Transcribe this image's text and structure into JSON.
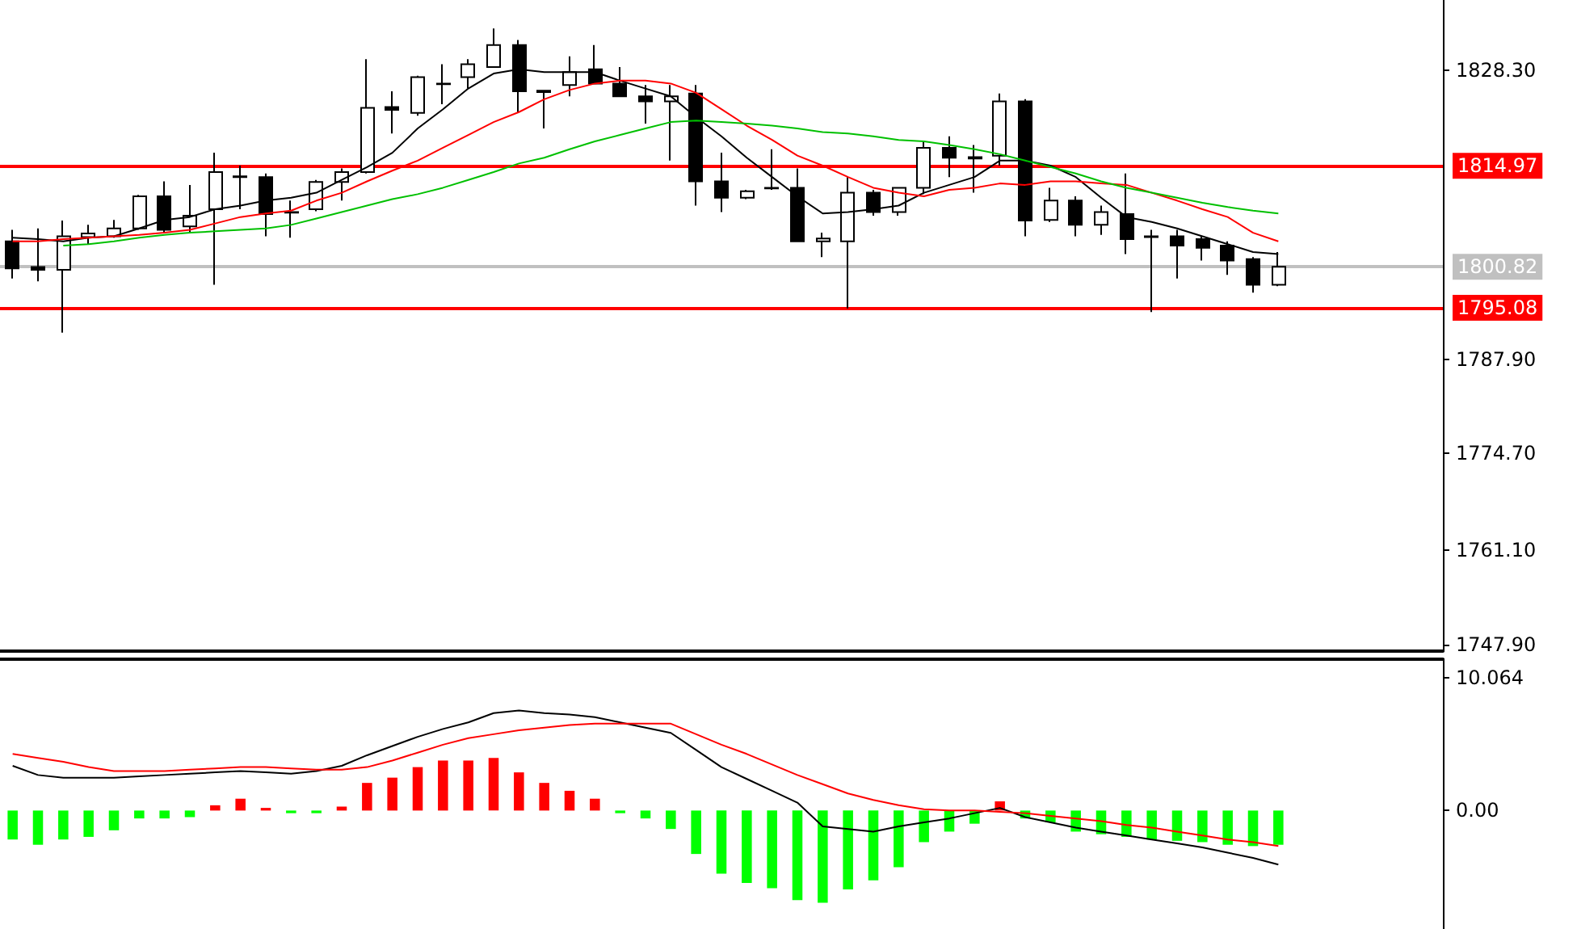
{
  "chart_data": [
    {
      "type": "candlestick",
      "categories": [
        null,
        null,
        null,
        null,
        null,
        null,
        null,
        null,
        null,
        null,
        null,
        null,
        null,
        null,
        null,
        null,
        null,
        null,
        null,
        null,
        null,
        null,
        null,
        null,
        null,
        null,
        null,
        null,
        null,
        null,
        null,
        null,
        null,
        null,
        null,
        null,
        null,
        null,
        null,
        null,
        null,
        null,
        null,
        null,
        null,
        null,
        null,
        null,
        null,
        null,
        null,
        null,
        null,
        null,
        null,
        null,
        null
      ],
      "color": "#000000",
      "ohlc": [
        [
          1804.4,
          1806.0,
          1799.2,
          1800.6
        ],
        [
          1800.8,
          1806.2,
          1798.8,
          1800.4
        ],
        [
          1800.4,
          1807.3,
          1791.6,
          1805.1
        ],
        [
          1805.0,
          1806.7,
          1804.0,
          1805.5
        ],
        [
          1805.1,
          1807.4,
          1804.9,
          1806.2
        ],
        [
          1806.2,
          1810.9,
          1806.0,
          1810.7
        ],
        [
          1810.7,
          1812.8,
          1805.6,
          1806.0
        ],
        [
          1806.5,
          1812.3,
          1805.6,
          1808.0
        ],
        [
          1808.9,
          1816.8,
          1798.3,
          1814.1
        ],
        [
          1813.5,
          1815.0,
          1808.9,
          1813.4
        ],
        [
          1813.4,
          1813.9,
          1805.1,
          1808.2
        ],
        [
          1808.4,
          1810.1,
          1804.9,
          1808.5
        ],
        [
          1808.9,
          1813.0,
          1808.6,
          1812.7
        ],
        [
          1812.7,
          1814.6,
          1810.1,
          1814.1
        ],
        [
          1814.1,
          1829.9,
          1813.9,
          1823.1
        ],
        [
          1823.2,
          1825.4,
          1819.5,
          1822.8
        ],
        [
          1822.4,
          1827.6,
          1822.0,
          1827.4
        ],
        [
          1826.4,
          1829.2,
          1823.6,
          1826.5
        ],
        [
          1827.4,
          1829.9,
          1825.8,
          1829.2
        ],
        [
          1828.8,
          1834.2,
          1828.7,
          1831.9
        ],
        [
          1831.9,
          1832.6,
          1822.4,
          1825.4
        ],
        [
          1825.5,
          1825.6,
          1820.2,
          1825.3
        ],
        [
          1826.3,
          1830.3,
          1824.7,
          1828.1
        ],
        [
          1828.5,
          1831.9,
          1826.5,
          1826.5
        ],
        [
          1826.5,
          1828.8,
          1824.7,
          1824.7
        ],
        [
          1824.7,
          1826.3,
          1820.9,
          1824.0
        ],
        [
          1824.0,
          1826.3,
          1815.7,
          1824.7
        ],
        [
          1825.1,
          1826.3,
          1809.4,
          1812.8
        ],
        [
          1812.8,
          1816.8,
          1808.5,
          1810.5
        ],
        [
          1810.5,
          1811.6,
          1810.3,
          1811.4
        ],
        [
          1811.8,
          1817.3,
          1811.6,
          1811.9
        ],
        [
          1811.9,
          1814.6,
          1804.4,
          1804.4
        ],
        [
          1804.4,
          1805.6,
          1802.2,
          1804.8
        ],
        [
          1804.4,
          1813.4,
          1795.0,
          1811.2
        ],
        [
          1811.2,
          1811.6,
          1808.0,
          1808.5
        ],
        [
          1808.5,
          1812.0,
          1808.0,
          1811.9
        ],
        [
          1811.9,
          1818.4,
          1811.0,
          1817.5
        ],
        [
          1817.5,
          1819.1,
          1813.4,
          1816.1
        ],
        [
          1816.2,
          1817.9,
          1811.2,
          1816.0
        ],
        [
          1816.4,
          1825.1,
          1815.0,
          1824.0
        ],
        [
          1824.0,
          1824.3,
          1805.1,
          1807.3
        ],
        [
          1807.4,
          1811.9,
          1807.1,
          1810.1
        ],
        [
          1810.1,
          1810.7,
          1805.1,
          1806.7
        ],
        [
          1806.7,
          1809.4,
          1805.3,
          1808.5
        ],
        [
          1808.2,
          1813.9,
          1802.6,
          1804.7
        ],
        [
          1805.1,
          1806.0,
          1794.5,
          1805.0
        ],
        [
          1805.1,
          1806.0,
          1799.2,
          1803.8
        ],
        [
          1804.7,
          1805.1,
          1801.7,
          1803.5
        ],
        [
          1803.8,
          1804.4,
          1799.7,
          1801.7
        ],
        [
          1801.9,
          1802.2,
          1797.2,
          1798.3
        ],
        [
          1798.3,
          1802.9,
          1798.1,
          1800.82
        ],
        null,
        null,
        null,
        null,
        null,
        null
      ],
      "series": [
        {
          "type": "line",
          "color": "#000000",
          "values": [
            1804.9,
            1804.7,
            1804.4,
            1804.9,
            1805.1,
            1806.2,
            1807.4,
            1807.8,
            1808.9,
            1809.4,
            1810.1,
            1810.5,
            1811.2,
            1813.0,
            1814.8,
            1816.8,
            1820.2,
            1822.9,
            1825.8,
            1827.9,
            1828.5,
            1828.1,
            1828.1,
            1828.1,
            1826.9,
            1825.8,
            1824.7,
            1821.8,
            1819.1,
            1816.1,
            1813.4,
            1810.7,
            1808.3,
            1808.5,
            1808.9,
            1809.4,
            1811.2,
            1812.3,
            1813.4,
            1815.7,
            1815.7,
            1815.0,
            1813.4,
            1810.5,
            1807.8,
            1807.1,
            1806.2,
            1805.1,
            1804.0,
            1802.9,
            1802.6,
            null,
            null,
            null,
            null,
            null,
            null
          ]
        },
        {
          "type": "line",
          "color": "#ff0000",
          "values": [
            1804.4,
            1804.4,
            1804.7,
            1804.9,
            1805.1,
            1805.3,
            1805.6,
            1806.0,
            1806.9,
            1807.8,
            1808.3,
            1808.7,
            1810.1,
            1811.2,
            1812.8,
            1814.3,
            1815.7,
            1817.5,
            1819.3,
            1821.1,
            1822.5,
            1824.3,
            1825.6,
            1826.5,
            1826.9,
            1826.9,
            1826.5,
            1825.2,
            1822.9,
            1820.6,
            1818.6,
            1816.4,
            1815.0,
            1813.4,
            1811.9,
            1811.2,
            1810.7,
            1811.6,
            1811.9,
            1812.5,
            1812.3,
            1812.8,
            1812.8,
            1812.5,
            1812.3,
            1811.2,
            1810.1,
            1808.9,
            1807.8,
            1805.6,
            1804.4,
            null,
            null,
            null,
            null,
            null,
            null
          ]
        },
        {
          "type": "line",
          "color": "#00c000",
          "values": [
            null,
            null,
            1803.8,
            1804.0,
            1804.4,
            1804.9,
            1805.3,
            1805.6,
            1805.8,
            1806.0,
            1806.2,
            1806.7,
            1807.6,
            1808.5,
            1809.4,
            1810.3,
            1811.0,
            1811.9,
            1813.0,
            1814.1,
            1815.3,
            1816.1,
            1817.3,
            1818.4,
            1819.3,
            1820.2,
            1821.1,
            1821.3,
            1821.1,
            1820.9,
            1820.6,
            1820.2,
            1819.7,
            1819.5,
            1819.1,
            1818.6,
            1818.4,
            1817.9,
            1817.3,
            1816.6,
            1815.7,
            1814.8,
            1813.9,
            1812.8,
            1811.9,
            1811.2,
            1810.5,
            1809.8,
            1809.2,
            1808.7,
            1808.3,
            null,
            null,
            null,
            null,
            null,
            null
          ]
        }
      ],
      "ylim": [
        1747,
        1838.2
      ],
      "yticks": [
        {
          "value": 1828.3,
          "label": "1828.30"
        },
        {
          "value": 1787.9,
          "label": "1787.90"
        },
        {
          "value": 1774.7,
          "label": "1774.70"
        },
        {
          "value": 1761.1,
          "label": "1761.10"
        },
        {
          "value": 1747.9,
          "label": "1747.90"
        }
      ],
      "ref_lines": [
        {
          "axis": "y",
          "value": 1814.97,
          "label": "1814.97",
          "color": "#ff0000"
        },
        {
          "axis": "y",
          "value": 1800.82,
          "label": "1800.82",
          "color": "#c0c0c0"
        },
        {
          "axis": "y",
          "value": 1795.08,
          "label": "1795.08",
          "color": "#ff0000"
        }
      ],
      "marker": "none",
      "tick_labels": "y"
    },
    {
      "type": "bar",
      "categories": [
        null,
        null,
        null,
        null,
        null,
        null,
        null,
        null,
        null,
        null,
        null,
        null,
        null,
        null,
        null,
        null,
        null,
        null,
        null,
        null,
        null,
        null,
        null,
        null,
        null,
        null,
        null,
        null,
        null,
        null,
        null,
        null,
        null,
        null,
        null,
        null,
        null,
        null,
        null,
        null,
        null,
        null,
        null,
        null,
        null,
        null,
        null,
        null,
        null,
        null,
        null,
        null,
        null,
        null,
        null,
        null,
        null
      ],
      "series": [
        {
          "type": "bar",
          "values": [
            -2.2,
            -2.6,
            -2.2,
            -2.0,
            -1.5,
            -0.6,
            -0.6,
            -0.5,
            0.4,
            0.9,
            0.2,
            -0.2,
            -0.2,
            0.3,
            2.1,
            2.5,
            3.3,
            3.8,
            3.8,
            4.0,
            2.9,
            2.1,
            1.5,
            0.9,
            -0.2,
            -0.6,
            -1.4,
            -3.3,
            -4.8,
            -5.5,
            -5.9,
            -6.8,
            -7.0,
            -6.0,
            -5.3,
            -4.3,
            -2.4,
            -1.6,
            -1.0,
            0.7,
            -0.6,
            -0.9,
            -1.6,
            -1.8,
            -2.0,
            -2.2,
            -2.3,
            -2.4,
            -2.6,
            -2.7,
            -2.6,
            null,
            null,
            null,
            null,
            null,
            null
          ],
          "colors": [
            "#00ff00",
            "#00ff00",
            "#00ff00",
            "#00ff00",
            "#00ff00",
            "#00ff00",
            "#00ff00",
            "#00ff00",
            "#ff0000",
            "#ff0000",
            "#ff0000",
            "#00ff00",
            "#00ff00",
            "#ff0000",
            "#ff0000",
            "#ff0000",
            "#ff0000",
            "#ff0000",
            "#ff0000",
            "#ff0000",
            "#ff0000",
            "#ff0000",
            "#ff0000",
            "#ff0000",
            "#00ff00",
            "#00ff00",
            "#00ff00",
            "#00ff00",
            "#00ff00",
            "#00ff00",
            "#00ff00",
            "#00ff00",
            "#00ff00",
            "#00ff00",
            "#00ff00",
            "#00ff00",
            "#00ff00",
            "#00ff00",
            "#00ff00",
            "#ff0000",
            "#00ff00",
            "#00ff00",
            "#00ff00",
            "#00ff00",
            "#00ff00",
            "#00ff00",
            "#00ff00",
            "#00ff00",
            "#00ff00",
            "#00ff00",
            "#00ff00",
            null,
            null,
            null,
            null,
            null,
            null
          ]
        },
        {
          "type": "line",
          "color": "#000000",
          "values": [
            3.4,
            2.7,
            2.5,
            2.5,
            2.5,
            2.6,
            2.7,
            2.8,
            2.9,
            3.0,
            2.9,
            2.8,
            3.0,
            3.4,
            4.2,
            4.9,
            5.6,
            6.2,
            6.7,
            7.4,
            7.6,
            7.4,
            7.3,
            7.1,
            6.7,
            6.3,
            5.9,
            4.6,
            3.3,
            2.4,
            1.5,
            0.6,
            -1.2,
            -1.4,
            -1.6,
            -1.2,
            -0.9,
            -0.6,
            -0.2,
            0.2,
            -0.5,
            -0.9,
            -1.3,
            -1.6,
            -1.9,
            -2.2,
            -2.5,
            -2.8,
            -3.2,
            -3.6,
            -4.1,
            null,
            null,
            null,
            null,
            null,
            null
          ]
        },
        {
          "type": "line",
          "color": "#ff0000",
          "values": [
            4.3,
            4.0,
            3.7,
            3.3,
            3.0,
            3.0,
            3.0,
            3.1,
            3.2,
            3.3,
            3.3,
            3.2,
            3.1,
            3.1,
            3.3,
            3.8,
            4.4,
            5.0,
            5.5,
            5.8,
            6.1,
            6.3,
            6.5,
            6.6,
            6.6,
            6.6,
            6.6,
            5.8,
            5.0,
            4.3,
            3.5,
            2.7,
            2.0,
            1.3,
            0.8,
            0.4,
            0.1,
            0.0,
            0.0,
            -0.1,
            -0.2,
            -0.4,
            -0.6,
            -0.8,
            -1.1,
            -1.3,
            -1.6,
            -1.9,
            -2.2,
            -2.4,
            -2.7,
            null,
            null,
            null,
            null,
            null,
            null
          ]
        }
      ],
      "ylim": [
        -9,
        11.5
      ],
      "yticks": [
        10.064,
        {
          "value": 0,
          "label": "0.00"
        }
      ],
      "marker": "none",
      "tick_labels": "y"
    }
  ]
}
